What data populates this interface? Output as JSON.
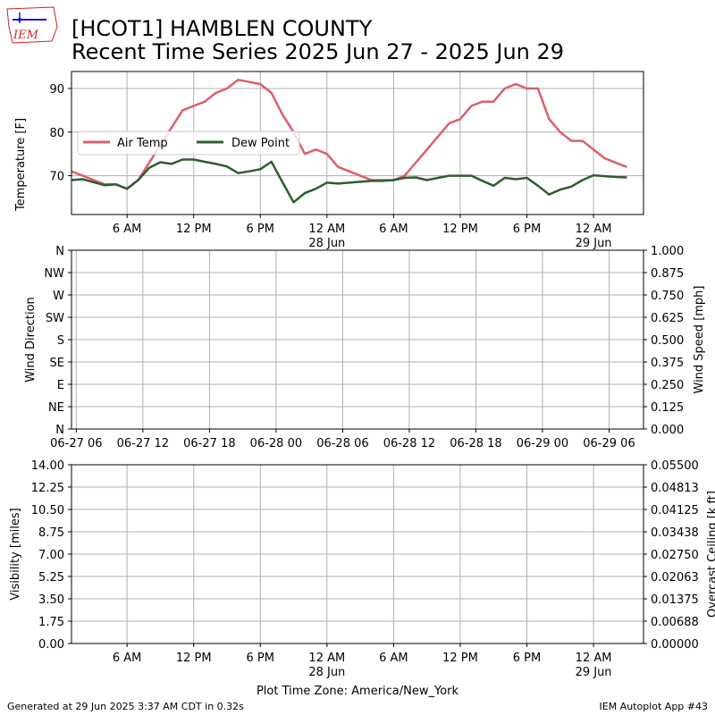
{
  "header": {
    "title_line1": "[HCOT1] HAMBLEN COUNTY",
    "title_line2": "Recent Time Series 2025 Jun 27 - 2025 Jun 29",
    "logo_text": "IEM"
  },
  "footer": {
    "generated": "Generated at 29 Jun 2025 3:37 AM CDT in 0.32s",
    "app": "IEM Autoplot App #43",
    "timezone": "Plot Time Zone: America/New_York"
  },
  "colors": {
    "air_temp": "#d9606a",
    "dew_point": "#2e5e2e",
    "ceiling_label": "#008000",
    "logo": "#cc2222"
  },
  "chart_data": [
    {
      "type": "line",
      "panel": "temperature",
      "ylabel": "Temperature [F]",
      "ylim": [
        61.1,
        93.9
      ],
      "xlim": [
        1,
        52.5
      ],
      "yticks": [
        70,
        80,
        90
      ],
      "x_ticks": [
        {
          "x": 6,
          "l1": "6 AM",
          "l2": ""
        },
        {
          "x": 12,
          "l1": "12 PM",
          "l2": ""
        },
        {
          "x": 18,
          "l1": "6 PM",
          "l2": ""
        },
        {
          "x": 24,
          "l1": "12 AM",
          "l2": "28 Jun"
        },
        {
          "x": 30,
          "l1": "6 AM",
          "l2": ""
        },
        {
          "x": 36,
          "l1": "12 PM",
          "l2": ""
        },
        {
          "x": 42,
          "l1": "6 PM",
          "l2": ""
        },
        {
          "x": 48,
          "l1": "12 AM",
          "l2": "29 Jun"
        }
      ],
      "grid": true,
      "legend_position": "center-left",
      "series": [
        {
          "name": "Air Temp",
          "points": [
            [
              1,
              71
            ],
            [
              2,
              70
            ],
            [
              3,
              69
            ],
            [
              4,
              68
            ],
            [
              5,
              68
            ],
            [
              6,
              67
            ],
            [
              7,
              69
            ],
            [
              8,
              73
            ],
            [
              9,
              77
            ],
            [
              10,
              81
            ],
            [
              11,
              85
            ],
            [
              12,
              86
            ],
            [
              13,
              87
            ],
            [
              14,
              89
            ],
            [
              15,
              90
            ],
            [
              16,
              92
            ],
            [
              17,
              91.5
            ],
            [
              18,
              91
            ],
            [
              19,
              89
            ],
            [
              20,
              84
            ],
            [
              21,
              80
            ],
            [
              22,
              75
            ],
            [
              23,
              76
            ],
            [
              24,
              75
            ],
            [
              25,
              72
            ],
            [
              26,
              71
            ],
            [
              27,
              70
            ],
            [
              28,
              69
            ],
            [
              29,
              69
            ],
            [
              30,
              69
            ],
            [
              31,
              70
            ],
            [
              32,
              73
            ],
            [
              33,
              76
            ],
            [
              34,
              79
            ],
            [
              35,
              82
            ],
            [
              36,
              83
            ],
            [
              37,
              86
            ],
            [
              38,
              87
            ],
            [
              39,
              87
            ],
            [
              40,
              90
            ],
            [
              41,
              91
            ],
            [
              42,
              90
            ],
            [
              43,
              90
            ],
            [
              44,
              83
            ],
            [
              45,
              80
            ],
            [
              46,
              78
            ],
            [
              47,
              78
            ],
            [
              48,
              76
            ],
            [
              49,
              74
            ],
            [
              50,
              73
            ],
            [
              51,
              72
            ]
          ]
        },
        {
          "name": "Dew Point",
          "points": [
            [
              1,
              69
            ],
            [
              2,
              69.2
            ],
            [
              3,
              68.5
            ],
            [
              4,
              67.8
            ],
            [
              5,
              68
            ],
            [
              6,
              67
            ],
            [
              7,
              69
            ],
            [
              8,
              71.8
            ],
            [
              9,
              73.1
            ],
            [
              10,
              72.7
            ],
            [
              11,
              73.7
            ],
            [
              12,
              73.7
            ],
            [
              13,
              73.2
            ],
            [
              14,
              72.7
            ],
            [
              15,
              72.1
            ],
            [
              16,
              70.6
            ],
            [
              17,
              71
            ],
            [
              18,
              71.5
            ],
            [
              19,
              73.2
            ],
            [
              20,
              68.5
            ],
            [
              21,
              63.9
            ],
            [
              22,
              66
            ],
            [
              23,
              67
            ],
            [
              24,
              68.4
            ],
            [
              25,
              68.2
            ],
            [
              26,
              68.4
            ],
            [
              27,
              68.6
            ],
            [
              28,
              68.8
            ],
            [
              29,
              68.8
            ],
            [
              30,
              69
            ],
            [
              31,
              69.5
            ],
            [
              32,
              69.6
            ],
            [
              33,
              69
            ],
            [
              34,
              69.5
            ],
            [
              35,
              70
            ],
            [
              36,
              70
            ],
            [
              37,
              70
            ],
            [
              38,
              68.8
            ],
            [
              39,
              67.7
            ],
            [
              40,
              69.5
            ],
            [
              41,
              69.2
            ],
            [
              42,
              69.5
            ],
            [
              43,
              67.7
            ],
            [
              44,
              65.7
            ],
            [
              45,
              66.8
            ],
            [
              46,
              67.5
            ],
            [
              47,
              69
            ],
            [
              48,
              70.1
            ],
            [
              49,
              69.9
            ],
            [
              50,
              69.7
            ],
            [
              51,
              69.6
            ]
          ]
        }
      ]
    },
    {
      "type": "line",
      "panel": "wind",
      "ylabel": "Wind Direction",
      "ylabel_right": "Wind Speed [mph]",
      "ylim": [
        0,
        360
      ],
      "y2lim": [
        0,
        1
      ],
      "xlim": [
        5.57,
        57.1
      ],
      "yticks": [
        {
          "v": 0,
          "label": "N"
        },
        {
          "v": 45,
          "label": "NE"
        },
        {
          "v": 90,
          "label": "E"
        },
        {
          "v": 135,
          "label": "SE"
        },
        {
          "v": 180,
          "label": "S"
        },
        {
          "v": 225,
          "label": "SW"
        },
        {
          "v": 270,
          "label": "W"
        },
        {
          "v": 315,
          "label": "NW"
        },
        {
          "v": 360,
          "label": "N"
        }
      ],
      "y2ticks": [
        "0.000",
        "0.125",
        "0.250",
        "0.375",
        "0.500",
        "0.625",
        "0.750",
        "0.875",
        "1.000"
      ],
      "x_ticks": [
        {
          "x": 6,
          "l1": "06-27 06"
        },
        {
          "x": 12,
          "l1": "06-27 12"
        },
        {
          "x": 18,
          "l1": "06-27 18"
        },
        {
          "x": 24,
          "l1": "06-28 00"
        },
        {
          "x": 30,
          "l1": "06-28 06"
        },
        {
          "x": 36,
          "l1": "06-28 12"
        },
        {
          "x": 42,
          "l1": "06-28 18"
        },
        {
          "x": 48,
          "l1": "06-29 00"
        },
        {
          "x": 54,
          "l1": "06-29 06"
        }
      ],
      "grid": true,
      "series": []
    },
    {
      "type": "line",
      "panel": "visibility",
      "ylabel": "Visibility [miles]",
      "ylabel_right": "Overcast Ceiling [k ft]",
      "ylim": [
        0,
        14
      ],
      "y2lim": [
        0,
        0.055
      ],
      "xlim": [
        1,
        52.5
      ],
      "yticks": [
        "0.00",
        "1.75",
        "3.50",
        "5.25",
        "7.00",
        "8.75",
        "10.50",
        "12.25",
        "14.00"
      ],
      "y2ticks": [
        "0.00000",
        "0.00688",
        "0.01375",
        "0.02063",
        "0.02750",
        "0.03438",
        "0.04125",
        "0.04813",
        "0.05500"
      ],
      "x_ticks": [
        {
          "x": 6,
          "l1": "6 AM",
          "l2": ""
        },
        {
          "x": 12,
          "l1": "12 PM",
          "l2": ""
        },
        {
          "x": 18,
          "l1": "6 PM",
          "l2": ""
        },
        {
          "x": 24,
          "l1": "12 AM",
          "l2": "28 Jun"
        },
        {
          "x": 30,
          "l1": "6 AM",
          "l2": ""
        },
        {
          "x": 36,
          "l1": "12 PM",
          "l2": ""
        },
        {
          "x": 42,
          "l1": "6 PM",
          "l2": ""
        },
        {
          "x": 48,
          "l1": "12 AM",
          "l2": "29 Jun"
        }
      ],
      "grid": true,
      "series": []
    }
  ]
}
